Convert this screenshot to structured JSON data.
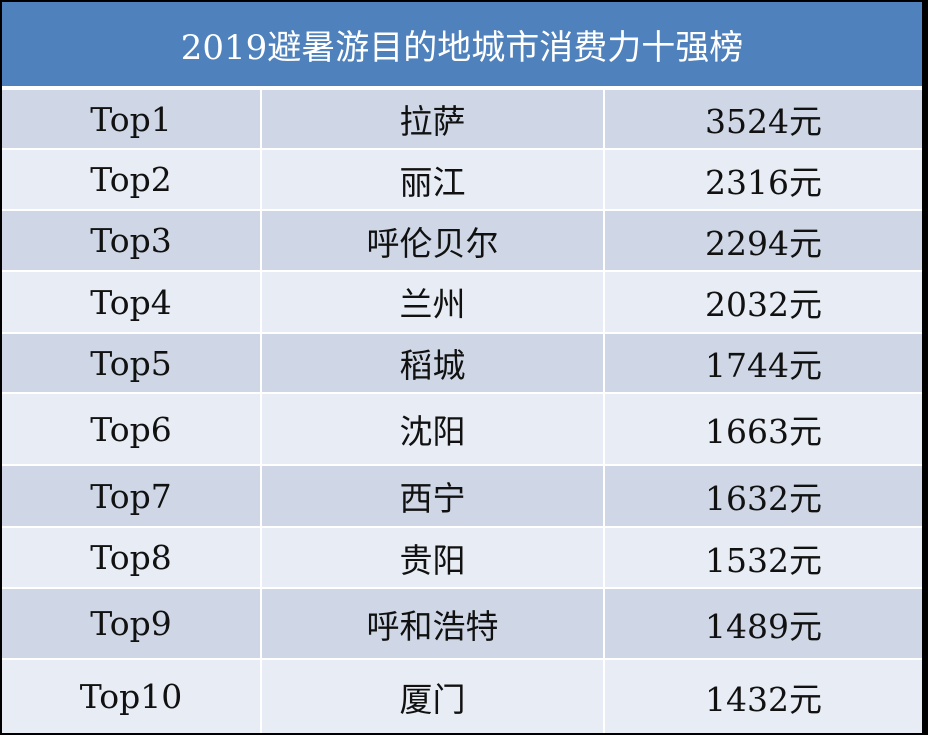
{
  "table": {
    "title": "2019避暑游目的地城市消费力十强榜",
    "rows": [
      [
        "Top1",
        "拉萨",
        "3524元"
      ],
      [
        "Top2",
        "丽江",
        "2316元"
      ],
      [
        "Top3",
        "呼伦贝尔",
        "2294元"
      ],
      [
        "Top4",
        "兰州",
        "2032元"
      ],
      [
        "Top5",
        "稻城",
        "1744元"
      ],
      [
        "Top6",
        "沈阳",
        "1663元"
      ],
      [
        "Top7",
        "西宁",
        "1632元"
      ],
      [
        "Top8",
        "贵阳",
        "1532元"
      ],
      [
        "Top9",
        "呼和浩特",
        "1489元"
      ],
      [
        "Top10",
        "厦门",
        "1432元"
      ]
    ]
  }
}
